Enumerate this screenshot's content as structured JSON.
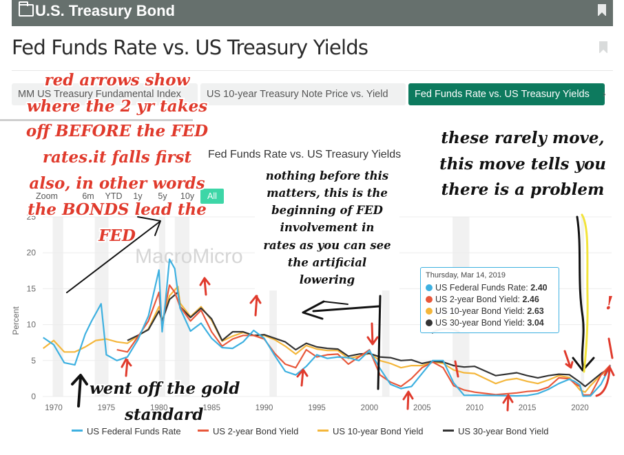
{
  "header": {
    "title": "U.S. Treasury Bond"
  },
  "page": {
    "title": "Fed Funds Rate vs. US Treasury Yields"
  },
  "tabs": [
    {
      "label": "MM US Treasury Fundamental Index"
    },
    {
      "label": "US 10-year Treasury Note Price vs. Yield"
    },
    {
      "label": "Fed Funds Rate vs. US Treasury Yields"
    }
  ],
  "zoom": {
    "label": "Zoom",
    "options": [
      "6m",
      "YTD",
      "1y",
      "5y",
      "10y",
      "All"
    ],
    "selected": "All"
  },
  "watermark": "MacroMicro",
  "tooltip": {
    "date": "Thursday, Mar 14, 2019",
    "rows": [
      {
        "label": "US Federal Funds Rate: ",
        "value": "2.40",
        "color": "#3db0e0"
      },
      {
        "label": "US 2-year Bond Yield: ",
        "value": "2.46",
        "color": "#e8573a"
      },
      {
        "label": "US 10-year Bond Yield: ",
        "value": "2.63",
        "color": "#f4b63a"
      },
      {
        "label": "US 30-year Bond Yield: ",
        "value": "3.04",
        "color": "#333333"
      }
    ]
  },
  "annotations": {
    "red": [
      "red arrows show",
      "where the 2 yr takes",
      "off BEFORE the FED",
      "rates.it falls first",
      "also, in other words",
      "the BONDS lead the",
      "FED"
    ],
    "right": [
      "these rarely move,",
      "this move tells you",
      "there is a problem"
    ],
    "middle": [
      "nothing before this",
      "matters, this is the",
      "beginning of FED",
      "involvement in",
      "rates as you can see",
      "the artificial",
      "lowering"
    ],
    "bottom": [
      "went off the gold",
      "standard"
    ],
    "exclaim": "!"
  },
  "colors": {
    "fed_funds": "#3db0e0",
    "two_year": "#e8573a",
    "ten_year": "#f4b63a",
    "thirty_year": "#333333",
    "accent": "#0d7a5e",
    "annotation_red": "#e03a2c"
  },
  "chart_data": {
    "type": "line",
    "title": "Fed Funds Rate vs. US Treasury Yields",
    "ylabel": "Percent",
    "xlim": [
      1969,
      2023
    ],
    "ylim": [
      0,
      25
    ],
    "x_ticks": [
      1970,
      1975,
      1980,
      1985,
      1990,
      1995,
      2000,
      2005,
      2010,
      2015,
      2020
    ],
    "y_ticks": [
      0,
      5,
      10,
      15,
      20,
      25
    ],
    "legend_position": "bottom",
    "series": [
      {
        "name": "US Federal Funds Rate",
        "x": [
          1969,
          1970,
          1971,
          1972,
          1973,
          1973.6,
          1974.5,
          1975,
          1976,
          1977,
          1978,
          1979,
          1980,
          1980.3,
          1980.6,
          1981,
          1981.5,
          1982,
          1983,
          1984,
          1985,
          1986,
          1987,
          1988,
          1989,
          1990,
          1991,
          1992,
          1993,
          1994,
          1995,
          1996,
          1997,
          1998,
          1999,
          2000,
          2001,
          2002,
          2003,
          2004,
          2005,
          2006,
          2007,
          2008,
          2009,
          2010,
          2012,
          2014,
          2015,
          2016,
          2017,
          2018,
          2019,
          2019.5,
          2020,
          2020.3,
          2021,
          2022,
          2022.9
        ],
        "y": [
          8.2,
          7.2,
          4.7,
          4.4,
          8.7,
          10.5,
          12.9,
          5.8,
          5.0,
          5.5,
          7.9,
          11.2,
          17.6,
          9.0,
          13.0,
          19.1,
          17.8,
          12.3,
          9.1,
          10.2,
          8.1,
          6.8,
          6.7,
          7.6,
          9.2,
          8.1,
          5.7,
          3.5,
          3.0,
          4.2,
          5.8,
          5.3,
          5.5,
          5.4,
          5.0,
          6.4,
          3.9,
          1.7,
          1.1,
          1.4,
          3.2,
          5.0,
          5.0,
          1.9,
          0.16,
          0.18,
          0.14,
          0.09,
          0.13,
          0.4,
          1.0,
          1.8,
          2.4,
          2.1,
          1.6,
          0.05,
          0.08,
          1.7,
          4.3
        ]
      },
      {
        "name": "US 2-year Bond Yield",
        "x": [
          1976,
          1977,
          1978,
          1979,
          1980,
          1980.3,
          1980.6,
          1981,
          1981.5,
          1982,
          1983,
          1984,
          1985,
          1986,
          1987,
          1988,
          1989,
          1990,
          1991,
          1992,
          1993,
          1994,
          1995,
          1996,
          1997,
          1998,
          1999,
          2000,
          2001,
          2002,
          2003,
          2004,
          2005,
          2006,
          2007,
          2008,
          2009,
          2010,
          2012,
          2014,
          2015,
          2016,
          2017,
          2018,
          2019,
          2019.5,
          2020,
          2020.3,
          2021,
          2022,
          2022.9
        ],
        "y": [
          6.5,
          6.2,
          8.3,
          10.5,
          14.5,
          9.5,
          12.5,
          15.5,
          14.5,
          12.5,
          10.5,
          12.0,
          9.0,
          7.0,
          8.0,
          8.5,
          8.5,
          8.0,
          6.0,
          4.5,
          4.0,
          6.5,
          5.5,
          5.8,
          5.9,
          4.5,
          5.5,
          6.5,
          3.0,
          2.0,
          1.4,
          2.5,
          4.0,
          4.8,
          4.0,
          1.5,
          0.9,
          0.6,
          0.25,
          0.5,
          0.7,
          0.8,
          1.3,
          2.6,
          2.46,
          1.8,
          1.4,
          0.2,
          0.2,
          3.0,
          4.4
        ]
      },
      {
        "name": "US 10-year Bond Yield",
        "x": [
          1969,
          1970,
          1971,
          1972,
          1973,
          1974,
          1975,
          1976,
          1977,
          1978,
          1979,
          1980,
          1980.3,
          1981,
          1981.8,
          1982,
          1983,
          1984,
          1985,
          1986,
          1987,
          1988,
          1989,
          1990,
          1991,
          1992,
          1993,
          1994,
          1995,
          1996,
          1997,
          1998,
          1999,
          2000,
          2001,
          2002,
          2003,
          2004,
          2005,
          2006,
          2007,
          2008,
          2009,
          2010,
          2012,
          2013,
          2014,
          2015,
          2016,
          2017,
          2018,
          2019,
          2020,
          2020.5,
          2021,
          2022,
          2022.9
        ],
        "y": [
          6.7,
          7.8,
          6.2,
          6.2,
          6.9,
          7.8,
          8.0,
          7.6,
          7.4,
          8.4,
          9.4,
          12.5,
          10.5,
          14.0,
          15.3,
          13.0,
          11.1,
          12.5,
          10.6,
          7.7,
          8.4,
          8.9,
          8.5,
          8.5,
          7.9,
          7.0,
          5.9,
          7.1,
          6.6,
          6.4,
          6.4,
          5.3,
          5.6,
          6.0,
          5.0,
          4.6,
          4.0,
          4.3,
          4.3,
          4.8,
          4.6,
          3.7,
          3.3,
          3.2,
          1.8,
          2.3,
          2.5,
          2.1,
          1.8,
          2.3,
          2.9,
          2.63,
          0.9,
          0.6,
          1.5,
          3.0,
          3.9
        ]
      },
      {
        "name": "US 30-year Bond Yield",
        "x": [
          1977,
          1978,
          1979,
          1980,
          1980.3,
          1981,
          1981.8,
          1982,
          1983,
          1984,
          1985,
          1986,
          1987,
          1988,
          1989,
          1990,
          1991,
          1992,
          1993,
          1994,
          1995,
          1996,
          1997,
          1998,
          1999,
          2000,
          2001,
          2002,
          2003,
          2004,
          2005,
          2006,
          2007,
          2008,
          2009,
          2010,
          2012,
          2014,
          2015,
          2016,
          2017,
          2018,
          2019,
          2020,
          2020.5,
          2021,
          2022,
          2022.9
        ],
        "y": [
          7.8,
          8.5,
          9.3,
          11.9,
          10.5,
          13.5,
          14.5,
          12.5,
          11.0,
          12.3,
          10.8,
          7.8,
          9.0,
          9.0,
          8.5,
          8.6,
          8.1,
          7.6,
          6.5,
          7.4,
          6.9,
          6.7,
          6.6,
          5.6,
          5.9,
          6.0,
          5.5,
          5.4,
          5.0,
          5.1,
          4.6,
          4.9,
          4.8,
          4.3,
          4.1,
          4.2,
          2.9,
          3.3,
          2.9,
          2.6,
          2.9,
          3.1,
          3.04,
          2.0,
          1.4,
          2.0,
          3.2,
          4.0
        ]
      }
    ]
  }
}
